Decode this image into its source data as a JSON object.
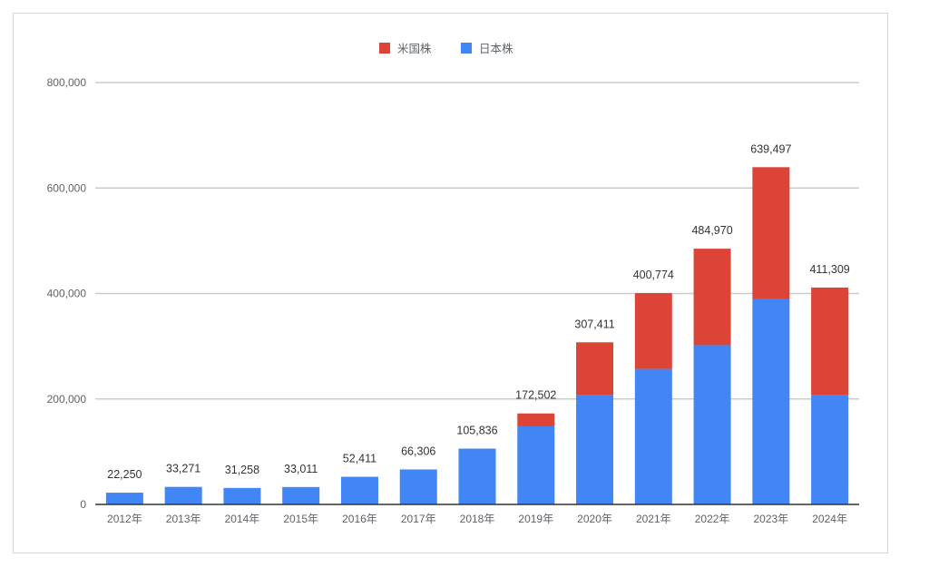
{
  "chart_data": {
    "type": "bar",
    "stacked": true,
    "categories": [
      "2012年",
      "2013年",
      "2014年",
      "2015年",
      "2016年",
      "2017年",
      "2018年",
      "2019年",
      "2020年",
      "2021年",
      "2022年",
      "2023年",
      "2024年"
    ],
    "series": [
      {
        "name": "日本株",
        "color": "#4285f4",
        "values": [
          22250,
          33271,
          31258,
          33011,
          52411,
          66306,
          105836,
          148000,
          207000,
          257000,
          302000,
          389000,
          207000
        ]
      },
      {
        "name": "米国株",
        "color": "#db4437",
        "values": [
          0,
          0,
          0,
          0,
          0,
          0,
          0,
          24502,
          100411,
          143774,
          182970,
          250497,
          204309
        ]
      }
    ],
    "totals": [
      22250,
      33271,
      31258,
      33011,
      52411,
      66306,
      105836,
      172502,
      307411,
      400774,
      484970,
      639497,
      411309
    ],
    "total_labels": [
      "22,250",
      "33,271",
      "31,258",
      "33,011",
      "52,411",
      "66,306",
      "105,836",
      "172,502",
      "307,411",
      "400,774",
      "484,970",
      "639,497",
      "411,309"
    ],
    "legend_order": [
      "米国株",
      "日本株"
    ],
    "legend_position": "top",
    "yticks": [
      0,
      200000,
      400000,
      600000,
      800000
    ],
    "ytick_labels": [
      "0",
      "200,000",
      "400,000",
      "600,000",
      "800,000"
    ],
    "ylim": [
      0,
      800000
    ],
    "grid": true,
    "title": "",
    "xlabel": "",
    "ylabel": ""
  }
}
